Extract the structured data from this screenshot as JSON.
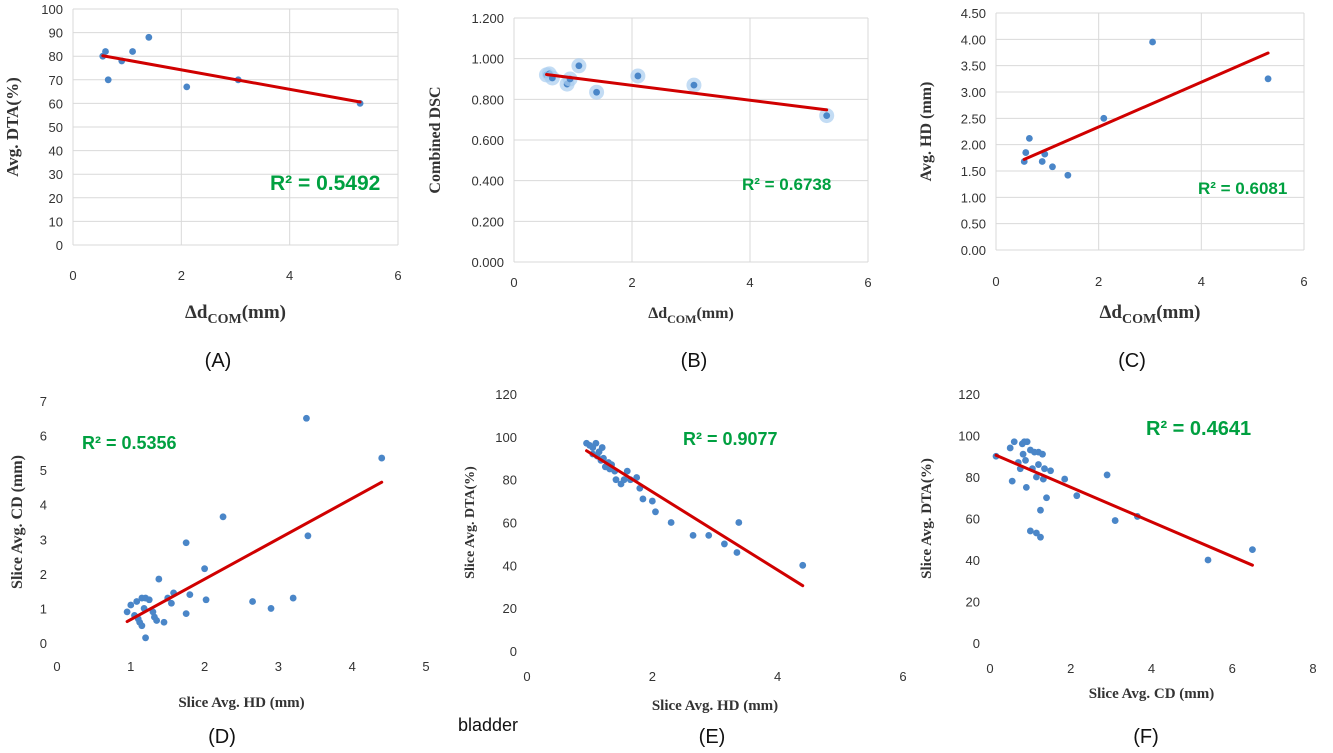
{
  "figure_note": "bladder",
  "chart_data": [
    {
      "type": "scatter",
      "panel": "(A)",
      "xlabel": "Δd",
      "xlabel_sub": "COM",
      "xlabel_unit": "(mm)",
      "ylabel": "Avg. DTA(%)",
      "xlim": [
        0,
        6
      ],
      "ylim": [
        0,
        100
      ],
      "xticks": [
        "0",
        "2",
        "4",
        "6"
      ],
      "yticks": [
        "0",
        "10",
        "20",
        "30",
        "40",
        "50",
        "60",
        "70",
        "80",
        "90",
        "100"
      ],
      "grid": true,
      "points": [
        [
          0.55,
          80
        ],
        [
          0.6,
          82
        ],
        [
          0.65,
          70
        ],
        [
          0.9,
          78
        ],
        [
          1.1,
          82
        ],
        [
          1.4,
          88
        ],
        [
          2.1,
          67
        ],
        [
          3.05,
          70
        ],
        [
          5.3,
          60
        ]
      ],
      "trendline": [
        [
          0.55,
          80.2
        ],
        [
          5.3,
          60.6
        ]
      ],
      "r2": "R² = 0.5492",
      "color": "#4a86c8",
      "trend_color": "#d00000"
    },
    {
      "type": "scatter",
      "panel": "(B)",
      "xlabel": "Δd",
      "xlabel_sub": "COM",
      "xlabel_unit": "(mm)",
      "ylabel": "Combined DSC",
      "xlim": [
        0,
        6
      ],
      "ylim": [
        0,
        1.2
      ],
      "xticks": [
        "0",
        "2",
        "4",
        "6"
      ],
      "yticks": [
        "0.000",
        "0.200",
        "0.400",
        "0.600",
        "0.800",
        "1.000",
        "1.200"
      ],
      "grid": true,
      "points": [
        [
          0.55,
          0.92
        ],
        [
          0.6,
          0.925
        ],
        [
          0.65,
          0.905
        ],
        [
          0.9,
          0.875
        ],
        [
          0.95,
          0.9
        ],
        [
          1.1,
          0.965
        ],
        [
          1.4,
          0.835
        ],
        [
          2.1,
          0.915
        ],
        [
          3.05,
          0.87
        ],
        [
          5.3,
          0.72
        ]
      ],
      "trendline": [
        [
          0.55,
          0.922
        ],
        [
          5.3,
          0.748
        ]
      ],
      "r2": "R² = 0.6738",
      "color": "#4a86c8",
      "trend_color": "#d00000"
    },
    {
      "type": "scatter",
      "panel": "(C)",
      "xlabel": "Δd",
      "xlabel_sub": "COM",
      "xlabel_unit": "(mm)",
      "ylabel": "Avg. HD (mm)",
      "xlim": [
        0,
        6
      ],
      "ylim": [
        0,
        4.5
      ],
      "xticks": [
        "0",
        "2",
        "4",
        "6"
      ],
      "yticks": [
        "0.00",
        "0.50",
        "1.00",
        "1.50",
        "2.00",
        "2.50",
        "3.00",
        "3.50",
        "4.00",
        "4.50"
      ],
      "grid": true,
      "points": [
        [
          0.55,
          1.68
        ],
        [
          0.58,
          1.85
        ],
        [
          0.65,
          2.12
        ],
        [
          0.9,
          1.68
        ],
        [
          0.95,
          1.82
        ],
        [
          1.1,
          1.58
        ],
        [
          1.4,
          1.42
        ],
        [
          2.1,
          2.5
        ],
        [
          3.05,
          3.95
        ],
        [
          5.3,
          3.25
        ]
      ],
      "trendline": [
        [
          0.55,
          1.72
        ],
        [
          5.3,
          3.74
        ]
      ],
      "r2": "R² = 0.6081",
      "color": "#4a86c8",
      "trend_color": "#d00000"
    },
    {
      "type": "scatter",
      "panel": "(D)",
      "xlabel": "Slice Avg. HD (mm)",
      "ylabel": "Slice Avg. CD (mm)",
      "xlim": [
        0,
        5
      ],
      "ylim": [
        0,
        7
      ],
      "xticks": [
        "0",
        "1",
        "2",
        "3",
        "4",
        "5"
      ],
      "yticks": [
        "0",
        "1",
        "2",
        "3",
        "4",
        "5",
        "6",
        "7"
      ],
      "grid": false,
      "points": [
        [
          0.95,
          0.9
        ],
        [
          1.0,
          1.1
        ],
        [
          1.05,
          0.8
        ],
        [
          1.08,
          1.2
        ],
        [
          1.1,
          0.7
        ],
        [
          1.12,
          0.6
        ],
        [
          1.15,
          1.3
        ],
        [
          1.15,
          0.5
        ],
        [
          1.18,
          1.0
        ],
        [
          1.2,
          0.15
        ],
        [
          1.2,
          1.3
        ],
        [
          1.25,
          1.25
        ],
        [
          1.3,
          0.9
        ],
        [
          1.32,
          0.75
        ],
        [
          1.35,
          0.65
        ],
        [
          1.38,
          1.85
        ],
        [
          1.45,
          0.6
        ],
        [
          1.5,
          1.3
        ],
        [
          1.55,
          1.15
        ],
        [
          1.58,
          1.45
        ],
        [
          1.75,
          0.85
        ],
        [
          1.75,
          2.9
        ],
        [
          1.8,
          1.4
        ],
        [
          2.0,
          2.15
        ],
        [
          2.02,
          1.25
        ],
        [
          2.25,
          3.65
        ],
        [
          2.65,
          1.2
        ],
        [
          2.9,
          1.0
        ],
        [
          3.2,
          1.3
        ],
        [
          3.38,
          6.5
        ],
        [
          3.4,
          3.1
        ],
        [
          4.4,
          5.35
        ]
      ],
      "trendline": [
        [
          0.95,
          0.62
        ],
        [
          4.4,
          4.65
        ]
      ],
      "r2": "R² = 0.5356",
      "color": "#4a86c8",
      "trend_color": "#d00000"
    },
    {
      "type": "scatter",
      "panel": "(E)",
      "xlabel": "Slice Avg. HD (mm)",
      "ylabel": "Slice Avg. DTA(%)",
      "xlim": [
        0,
        6
      ],
      "ylim": [
        0,
        120
      ],
      "xticks": [
        "0",
        "2",
        "4",
        "6"
      ],
      "yticks": [
        "0",
        "20",
        "40",
        "60",
        "80",
        "100",
        "120"
      ],
      "grid": false,
      "points": [
        [
          0.95,
          97
        ],
        [
          1.0,
          96
        ],
        [
          1.05,
          95
        ],
        [
          1.05,
          92
        ],
        [
          1.1,
          97
        ],
        [
          1.12,
          91
        ],
        [
          1.15,
          93
        ],
        [
          1.18,
          89
        ],
        [
          1.2,
          95
        ],
        [
          1.22,
          90
        ],
        [
          1.25,
          86
        ],
        [
          1.3,
          88
        ],
        [
          1.32,
          85
        ],
        [
          1.35,
          87
        ],
        [
          1.4,
          84
        ],
        [
          1.42,
          80
        ],
        [
          1.5,
          78
        ],
        [
          1.55,
          80
        ],
        [
          1.6,
          84
        ],
        [
          1.65,
          80
        ],
        [
          1.75,
          81
        ],
        [
          1.8,
          76
        ],
        [
          1.85,
          71
        ],
        [
          2.0,
          70
        ],
        [
          2.05,
          65
        ],
        [
          2.3,
          60
        ],
        [
          2.65,
          54
        ],
        [
          2.9,
          54
        ],
        [
          3.15,
          50
        ],
        [
          3.35,
          46
        ],
        [
          3.38,
          60
        ],
        [
          4.4,
          40
        ]
      ],
      "trendline": [
        [
          0.95,
          93.5
        ],
        [
          4.4,
          30.5
        ]
      ],
      "r2": "R² = 0.9077",
      "color": "#4a86c8",
      "trend_color": "#d00000"
    },
    {
      "type": "scatter",
      "panel": "(F)",
      "xlabel": "Slice Avg. CD (mm)",
      "ylabel": "Slice Avg. DTA(%)",
      "xlim": [
        0,
        8
      ],
      "ylim": [
        0,
        120
      ],
      "xticks": [
        "0",
        "2",
        "4",
        "6",
        "8"
      ],
      "yticks": [
        "0",
        "20",
        "40",
        "60",
        "80",
        "100",
        "120"
      ],
      "grid": false,
      "points": [
        [
          0.15,
          90
        ],
        [
          0.5,
          94
        ],
        [
          0.55,
          78
        ],
        [
          0.6,
          97
        ],
        [
          0.7,
          87
        ],
        [
          0.75,
          84
        ],
        [
          0.8,
          96
        ],
        [
          0.82,
          91
        ],
        [
          0.85,
          97
        ],
        [
          0.88,
          88
        ],
        [
          0.9,
          75
        ],
        [
          0.92,
          97
        ],
        [
          1.0,
          93
        ],
        [
          1.0,
          54
        ],
        [
          1.05,
          84
        ],
        [
          1.1,
          92
        ],
        [
          1.15,
          80
        ],
        [
          1.15,
          53
        ],
        [
          1.2,
          92
        ],
        [
          1.2,
          86
        ],
        [
          1.25,
          64
        ],
        [
          1.25,
          51
        ],
        [
          1.3,
          91
        ],
        [
          1.32,
          79
        ],
        [
          1.35,
          84
        ],
        [
          1.4,
          70
        ],
        [
          1.5,
          83
        ],
        [
          1.85,
          79
        ],
        [
          2.15,
          71
        ],
        [
          2.9,
          81
        ],
        [
          3.1,
          59
        ],
        [
          3.65,
          61
        ],
        [
          5.4,
          40
        ],
        [
          6.5,
          45
        ]
      ],
      "trendline": [
        [
          0.15,
          90.5
        ],
        [
          6.5,
          37.5
        ]
      ],
      "r2": "R² = 0.4641",
      "color": "#4a86c8",
      "trend_color": "#d00000"
    }
  ]
}
